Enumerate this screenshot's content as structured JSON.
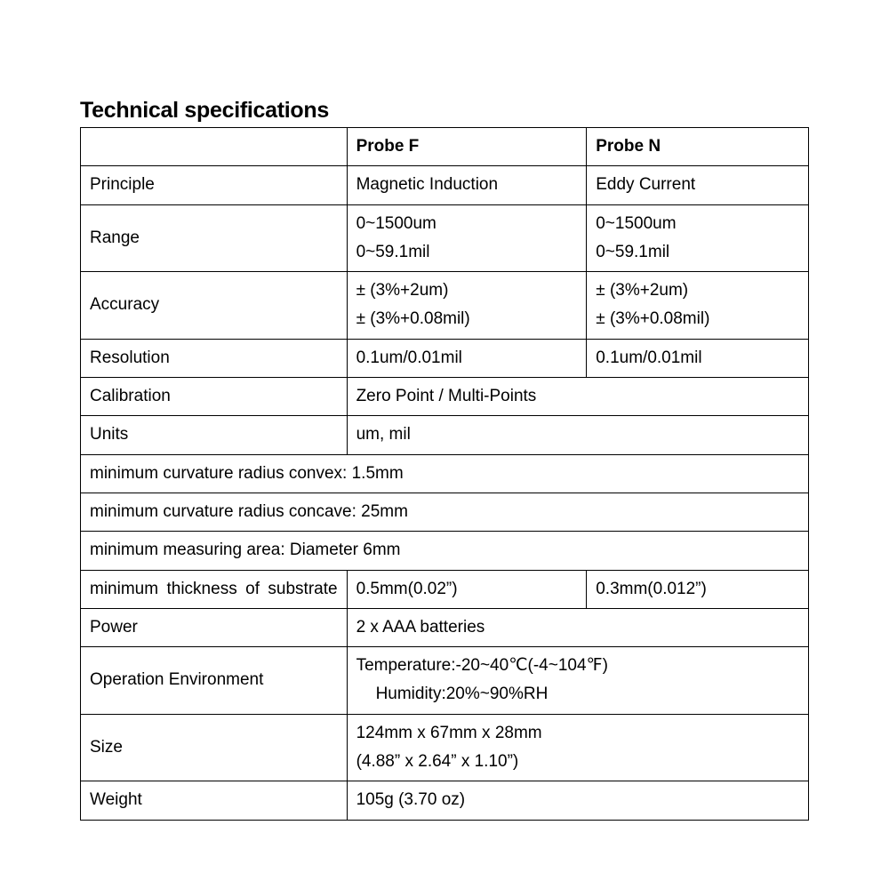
{
  "title": "Technical specifications",
  "table": {
    "columns": {
      "col1_width": 300,
      "col2_width": 270,
      "col3_width": 250
    },
    "border_color": "#000000",
    "font_size": 19,
    "title_font_size": 25,
    "background": "#ffffff",
    "header": {
      "c1": "",
      "c2": "Probe F",
      "c3": "Probe N"
    },
    "principle": {
      "label": "Principle",
      "f": "Magnetic Induction",
      "n": "Eddy Current"
    },
    "range": {
      "label": "Range",
      "f_line1": "0~1500um",
      "f_line2": "0~59.1mil",
      "n_line1": "0~1500um",
      "n_line2": "0~59.1mil"
    },
    "accuracy": {
      "label": "Accuracy",
      "f_line1": "± (3%+2um)",
      "f_line2": "± (3%+0.08mil)",
      "n_line1": "± (3%+2um)",
      "n_line2": "± (3%+0.08mil)"
    },
    "resolution": {
      "label": "Resolution",
      "f": "0.1um/0.01mil",
      "n": "0.1um/0.01mil"
    },
    "calibration": {
      "label": "Calibration",
      "value": "Zero Point / Multi-Points"
    },
    "units": {
      "label": "Units",
      "value": "um, mil"
    },
    "curv_convex": "minimum curvature radius convex: 1.5mm",
    "curv_concave": "minimum curvature radius concave: 25mm",
    "min_area": "minimum measuring area: Diameter 6mm",
    "min_thickness": {
      "label": "minimum thickness of substrate",
      "f": "0.5mm(0.02”)",
      "n": "0.3mm(0.012”)"
    },
    "power": {
      "label": "Power",
      "value": "2 x AAA batteries"
    },
    "operation_env": {
      "label": "Operation Environment",
      "line1": "Temperature:-20~40℃(-4~104℉)",
      "line2": "Humidity:20%~90%RH"
    },
    "size": {
      "label": "Size",
      "line1": "124mm x 67mm x 28mm",
      "line2": "(4.88” x 2.64” x 1.10”)"
    },
    "weight": {
      "label": "Weight",
      "value": "105g (3.70 oz)"
    }
  }
}
